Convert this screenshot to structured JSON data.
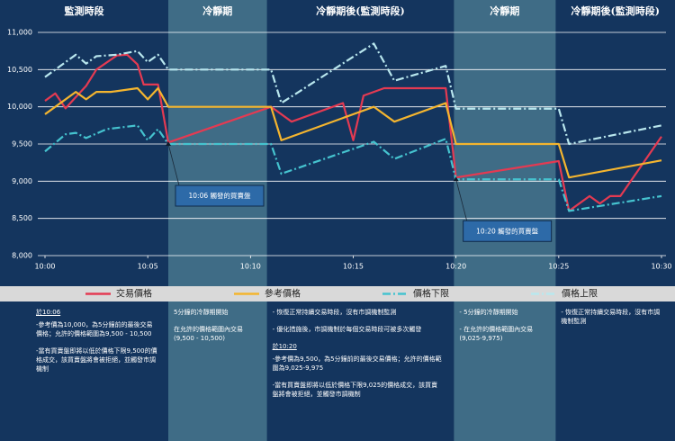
{
  "chart_data": {
    "type": "line",
    "xlim": [
      0,
      30
    ],
    "xticks": [
      {
        "value": 0,
        "label": "10:00"
      },
      {
        "value": 5,
        "label": "10:05"
      },
      {
        "value": 10,
        "label": "10:10"
      },
      {
        "value": 15,
        "label": "10:15"
      },
      {
        "value": 20,
        "label": "10:20"
      },
      {
        "value": 25,
        "label": "10:25"
      },
      {
        "value": 30,
        "label": "10:30"
      }
    ],
    "ylim": [
      8000,
      11000
    ],
    "yticks": [
      {
        "value": 8000,
        "label": "8,000"
      },
      {
        "value": 8500,
        "label": "8,500"
      },
      {
        "value": 9000,
        "label": "9,000"
      },
      {
        "value": 9500,
        "label": "9,500"
      },
      {
        "value": 10000,
        "label": "10,000"
      },
      {
        "value": 10500,
        "label": "10,500"
      },
      {
        "value": 11000,
        "label": "11,000"
      }
    ],
    "grid": true,
    "series": [
      {
        "name": "交易價格",
        "color": "#e43a52",
        "dash": "solid",
        "x": [
          0,
          0.5,
          1,
          1.5,
          2,
          2.5,
          3.5,
          4,
          4.5,
          4.8,
          5.5,
          6,
          11,
          12,
          14.5,
          15,
          15.5,
          16.5,
          19.5,
          20,
          25,
          25.5,
          26.5,
          27,
          27.5,
          28,
          30
        ],
        "values": [
          10080,
          10180,
          9980,
          10130,
          10280,
          10500,
          10690,
          10700,
          10570,
          10300,
          10300,
          9520,
          10000,
          9800,
          10050,
          9550,
          10150,
          10250,
          10250,
          9050,
          9270,
          8600,
          8800,
          8700,
          8800,
          8800,
          9600
        ]
      },
      {
        "name": "參考價格",
        "color": "#f4b52f",
        "dash": "solid",
        "x": [
          0,
          1.5,
          2,
          2.5,
          3.2,
          4.5,
          5,
          5.5,
          6,
          11,
          11.5,
          16,
          17,
          19.5,
          20,
          25,
          25.5,
          30
        ],
        "values": [
          9900,
          10200,
          10100,
          10200,
          10200,
          10250,
          10100,
          10250,
          10000,
          10000,
          9550,
          10000,
          9800,
          10050,
          9500,
          9500,
          9050,
          9280
        ]
      },
      {
        "name": "價格下限",
        "color": "#45c3cf",
        "dash": "dashdot",
        "x": [
          0,
          1,
          1.5,
          2,
          3,
          4.5,
          5,
          5.5,
          6,
          11,
          11.5,
          16,
          17,
          19.5,
          20,
          25,
          25.5,
          30
        ],
        "values": [
          9400,
          9630,
          9650,
          9580,
          9700,
          9750,
          9550,
          9700,
          9500,
          9500,
          9100,
          9530,
          9300,
          9570,
          9025,
          9025,
          8600,
          8800
        ]
      },
      {
        "name": "價格上限",
        "color": "#b9e7ee",
        "dash": "dashdot",
        "x": [
          0,
          1.5,
          2,
          2.5,
          3.5,
          4.5,
          5,
          5.5,
          6,
          11,
          11.5,
          16,
          17,
          19.5,
          20,
          25,
          25.5,
          30
        ],
        "values": [
          10400,
          10700,
          10580,
          10680,
          10700,
          10750,
          10600,
          10700,
          10500,
          10500,
          10050,
          10850,
          10350,
          10550,
          9975,
          9975,
          9500,
          9750
        ]
      }
    ],
    "annotations": [
      {
        "text": "10:06 觸發的買賣盤",
        "x": 6,
        "y": 9500
      },
      {
        "text": "10:20 觸發的買賣盤",
        "x": 20,
        "y": 9025
      }
    ],
    "periods": [
      {
        "label": "監測時段",
        "start": 0,
        "end": 6,
        "shaded": false,
        "notes": [
          {
            "heading": "於10:06"
          },
          "-參考價為10,000，為5分鐘前的最後交易價格；允許的價格範圍為9,500 - 10,500",
          "-當有買賣盤即將以低於價格下限9,500的價格成交，該買賣盤將會被拒絕，並觸發市調機制"
        ]
      },
      {
        "label": "冷靜期",
        "start": 6,
        "end": 10.8,
        "shaded": true,
        "notes": [
          "5分鐘的冷靜期開始",
          "在允許的價格範圍內交易(9,500 - 10,500)"
        ]
      },
      {
        "label": "冷靜期後(監測時段)",
        "start": 10.8,
        "end": 19.9,
        "shaded": false,
        "notes": [
          "- 恢復正常持續交易時段，沒有市調機制監測",
          "- 優化措施後，市調機制於每個交易時段可被多次觸發",
          {
            "heading": "於10:20"
          },
          "-參考價為9,500，為5分鐘前的最後交易價格；允許的價格範圍為9,025-9,975",
          "-當有買賣盤即將以低於價格下限9,025的價格成交，該買賣盤將會被拒絕，並觸發市調機制"
        ]
      },
      {
        "label": "冷靜期",
        "start": 19.9,
        "end": 24.85,
        "shaded": true,
        "notes": [
          "- 5分鐘的冷靜期開始",
          "- 在允許的價格範圍內交易(9,025-9,975)"
        ]
      },
      {
        "label": "冷靜期後(監測時段)",
        "start": 24.85,
        "end": 30,
        "shaded": false,
        "notes": [
          "- 恢復正常持續交易時段，沒有市調機制監測"
        ]
      }
    ]
  }
}
